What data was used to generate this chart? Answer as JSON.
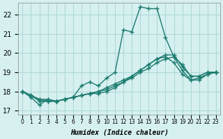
{
  "xlabel": "Humidex (Indice chaleur)",
  "ylabel": "",
  "background_color": "#d6f0f0",
  "grid_color": "#b0d8d8",
  "line_color": "#1a7a6e",
  "xlim": [
    -0.5,
    23.5
  ],
  "ylim": [
    16.8,
    22.6
  ],
  "yticks": [
    17,
    18,
    19,
    20,
    21,
    22
  ],
  "xtick_labels": [
    "0",
    "1",
    "2",
    "3",
    "4",
    "5",
    "6",
    "7",
    "8",
    "9",
    "10",
    "11",
    "12",
    "13",
    "14",
    "15",
    "16",
    "17",
    "18",
    "19",
    "20",
    "21",
    "22",
    "23"
  ],
  "series": [
    {
      "x": [
        0,
        1,
        2,
        3,
        4,
        5,
        6,
        7,
        8,
        9,
        10,
        11,
        12,
        13,
        14,
        15,
        16,
        17,
        18,
        19,
        20,
        21,
        22,
        23
      ],
      "y": [
        18.0,
        17.7,
        17.3,
        17.6,
        17.5,
        17.6,
        17.7,
        18.3,
        18.5,
        18.3,
        18.7,
        19.0,
        21.2,
        21.1,
        22.4,
        22.3,
        22.3,
        20.8,
        19.8,
        19.4,
        18.8,
        18.8,
        19.0,
        19.0
      ]
    },
    {
      "x": [
        0,
        1,
        2,
        3,
        4,
        5,
        6,
        7,
        8,
        9,
        10,
        11,
        12,
        13,
        14,
        15,
        16,
        17,
        18,
        19,
        20,
        21,
        22,
        23
      ],
      "y": [
        18.0,
        17.8,
        17.6,
        17.6,
        17.5,
        17.6,
        17.7,
        17.8,
        17.9,
        17.9,
        18.0,
        18.2,
        18.5,
        18.8,
        19.1,
        19.4,
        19.7,
        19.9,
        19.9,
        19.3,
        18.8,
        18.8,
        19.0,
        19.0
      ]
    },
    {
      "x": [
        0,
        1,
        2,
        3,
        4,
        5,
        6,
        7,
        8,
        9,
        10,
        11,
        12,
        13,
        14,
        15,
        16,
        17,
        18,
        19,
        20,
        21,
        22,
        23
      ],
      "y": [
        18.0,
        17.8,
        17.6,
        17.5,
        17.5,
        17.6,
        17.7,
        17.8,
        17.9,
        18.0,
        18.1,
        18.3,
        18.5,
        18.7,
        19.0,
        19.2,
        19.5,
        19.7,
        19.8,
        19.1,
        18.6,
        18.7,
        18.9,
        19.0
      ]
    },
    {
      "x": [
        0,
        1,
        2,
        3,
        4,
        5,
        6,
        7,
        8,
        9,
        10,
        11,
        12,
        13,
        14,
        15,
        16,
        17,
        18,
        19,
        20,
        21,
        22,
        23
      ],
      "y": [
        18.0,
        17.8,
        17.5,
        17.5,
        17.5,
        17.6,
        17.7,
        17.8,
        17.9,
        18.0,
        18.2,
        18.4,
        18.6,
        18.8,
        19.1,
        19.4,
        19.7,
        19.8,
        19.5,
        18.9,
        18.6,
        18.6,
        18.9,
        19.0
      ]
    }
  ]
}
